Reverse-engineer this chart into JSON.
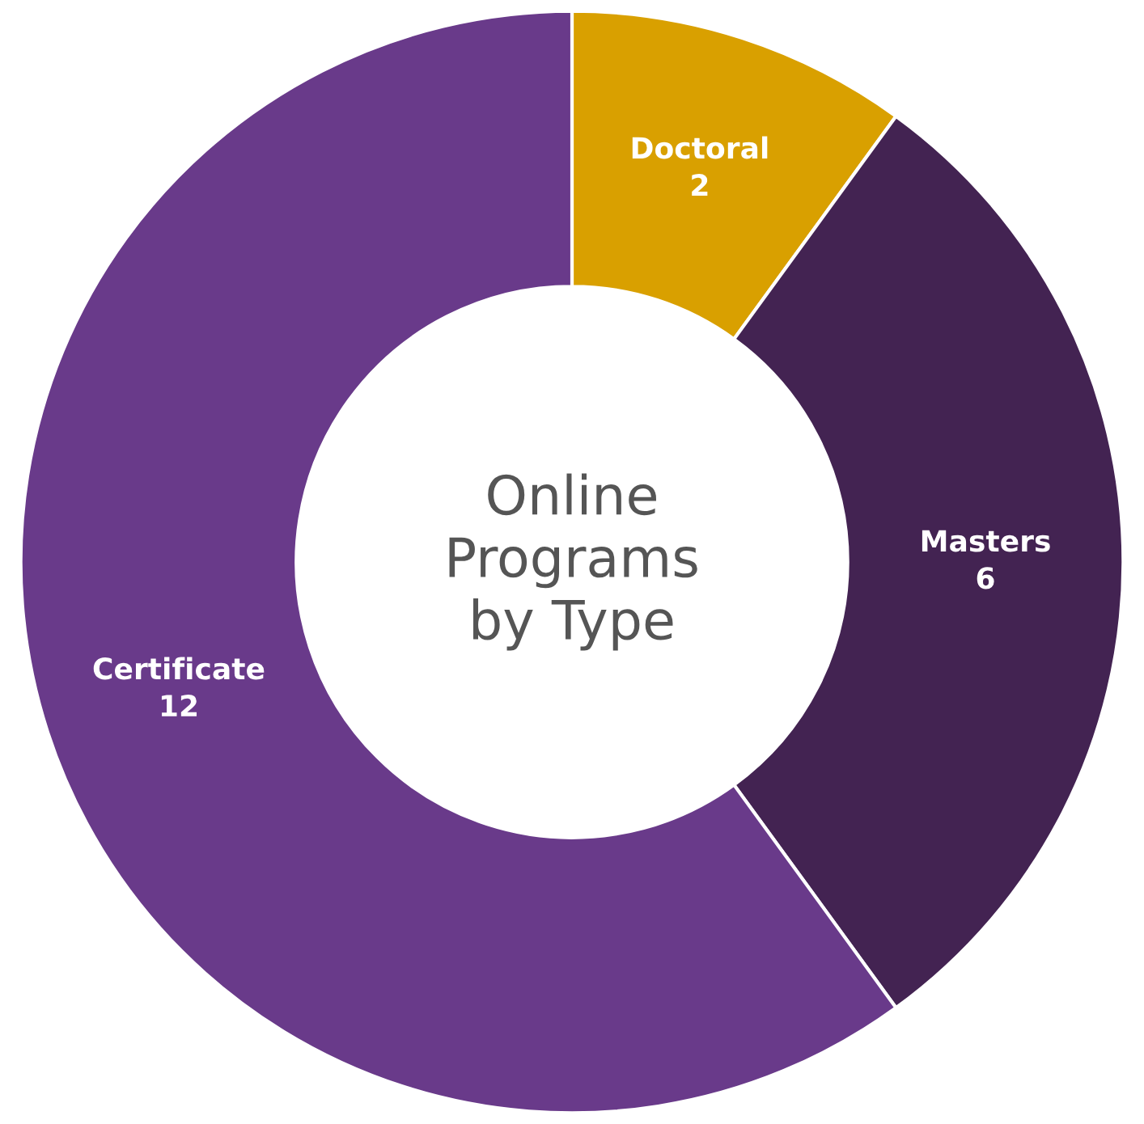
{
  "chart_data": {
    "type": "donut",
    "title": "Online\nPrograms\nby Type",
    "categories": [
      "Doctoral",
      "Masters",
      "Certificate"
    ],
    "values": [
      2,
      6,
      12
    ],
    "colors": [
      "#d9a000",
      "#432352",
      "#693a8a"
    ],
    "data_labels": true,
    "legend": false
  }
}
